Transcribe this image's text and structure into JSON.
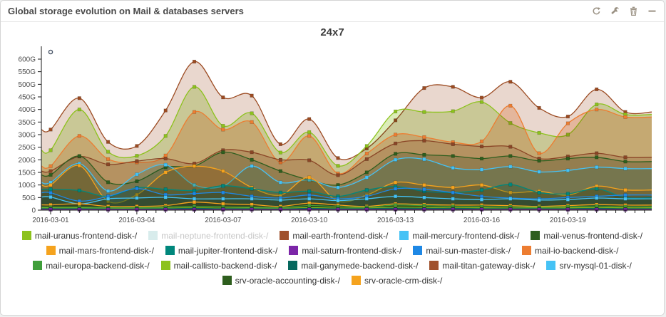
{
  "panel": {
    "title": "Global storage evolution on Mail & databases servers",
    "header_icons": [
      "refresh-icon",
      "wrench-icon",
      "trash-icon",
      "minimize-icon"
    ]
  },
  "chart_data": {
    "type": "area",
    "title": "24x7",
    "x": [
      "2016-03-01",
      "2016-03-02",
      "2016-03-03",
      "2016-03-04",
      "2016-03-05",
      "2016-03-06",
      "2016-03-07",
      "2016-03-08",
      "2016-03-09",
      "2016-03-10",
      "2016-03-11",
      "2016-03-12",
      "2016-03-13",
      "2016-03-14",
      "2016-03-15",
      "2016-03-16",
      "2016-03-17",
      "2016-03-18",
      "2016-03-19",
      "2016-03-20",
      "2016-03-21"
    ],
    "x_tick_labels": [
      "2016-03-01",
      "2016-03-04",
      "2016-03-07",
      "2016-03-10",
      "2016-03-13",
      "2016-03-16",
      "2016-03-19"
    ],
    "x_label_day_indices": [
      0,
      3,
      6,
      9,
      12,
      15,
      18
    ],
    "ylim": [
      0,
      600
    ],
    "y_ticks": [
      0,
      50,
      100,
      150,
      200,
      250,
      300,
      350,
      400,
      450,
      500,
      550,
      600
    ],
    "y_unit": "G",
    "grid": false,
    "legend_position": "bottom",
    "series": [
      {
        "name": "mail-earth-frontend-disk-/",
        "color": "#9c4b22",
        "opacity": 0.22,
        "values": [
          320,
          445,
          271,
          255,
          396,
          590,
          448,
          455,
          262,
          362,
          207,
          245,
          357,
          485,
          490,
          447,
          510,
          406,
          372,
          480,
          390
        ]
      },
      {
        "name": "mail-uranus-frontend-disk-/",
        "color": "#8cc21c",
        "opacity": 0.3,
        "values": [
          238,
          400,
          232,
          216,
          295,
          490,
          335,
          385,
          229,
          310,
          176,
          255,
          392,
          390,
          393,
          430,
          346,
          307,
          300,
          420,
          380
        ]
      },
      {
        "name": "mail-io-backend-disk-/",
        "color": "#ed7d31",
        "opacity": 0.3,
        "values": [
          175,
          295,
          203,
          190,
          217,
          390,
          320,
          350,
          190,
          295,
          146,
          225,
          300,
          290,
          270,
          273,
          415,
          226,
          345,
          400,
          370
        ]
      },
      {
        "name": "mail-titan-gateway-disk-/",
        "color": "#8a4526",
        "opacity": 0.18,
        "values": [
          155,
          213,
          182,
          195,
          205,
          185,
          238,
          230,
          200,
          198,
          139,
          203,
          265,
          276,
          262,
          253,
          252,
          205,
          213,
          226,
          210
        ]
      },
      {
        "name": "mail-venus-frontend-disk-/",
        "color": "#2e5e1e",
        "opacity": 0.22,
        "values": [
          140,
          215,
          111,
          115,
          170,
          175,
          230,
          200,
          155,
          120,
          100,
          150,
          224,
          220,
          215,
          205,
          215,
          196,
          205,
          210,
          193
        ]
      },
      {
        "name": "mail-mercury-frontend-disk-/",
        "color": "#45c2f5",
        "opacity": 0.28,
        "values": [
          110,
          185,
          76,
          142,
          180,
          100,
          95,
          175,
          110,
          120,
          90,
          130,
          200,
          202,
          168,
          161,
          173,
          152,
          158,
          171,
          165
        ]
      },
      {
        "name": "mail-mars-frontend-disk-/",
        "color": "#f5a31e",
        "opacity": 0.32,
        "values": [
          100,
          177,
          35,
          61,
          150,
          175,
          155,
          90,
          60,
          130,
          35,
          60,
          110,
          100,
          90,
          100,
          70,
          75,
          60,
          95,
          80
        ]
      },
      {
        "name": "mail-jupiter-frontend-disk-/",
        "color": "#00877c",
        "opacity": 0.22,
        "values": [
          83,
          78,
          55,
          89,
          83,
          78,
          97,
          85,
          70,
          75,
          55,
          80,
          94,
          75,
          70,
          80,
          102,
          70,
          65,
          85,
          50
        ]
      },
      {
        "name": "mail-sun-master-disk-/",
        "color": "#1e88e5",
        "opacity": 0.25,
        "values": [
          69,
          36,
          55,
          86,
          61,
          66,
          70,
          55,
          48,
          60,
          45,
          55,
          85,
          83,
          70,
          55,
          48,
          45,
          50,
          55,
          60
        ]
      },
      {
        "name": "srv-mysql-01-disk-/",
        "color": "#45c2f5",
        "opacity": 0.35,
        "values": [
          52,
          25,
          45,
          48,
          51,
          45,
          45,
          45,
          40,
          45,
          38,
          45,
          55,
          50,
          45,
          42,
          45,
          40,
          42,
          48,
          45
        ]
      },
      {
        "name": "srv-oracle-crm-disk-/",
        "color": "#f5a31e",
        "opacity": 0.35,
        "values": [
          21,
          25,
          15,
          15,
          18,
          32,
          25,
          22,
          15,
          28,
          20,
          15,
          25,
          22,
          20,
          20,
          18,
          15,
          18,
          22,
          20
        ]
      },
      {
        "name": "mail-europa-backend-disk-/",
        "color": "#3f9e3a",
        "opacity": 0.45,
        "values": [
          12,
          12,
          10,
          10,
          12,
          15,
          13,
          12,
          10,
          18,
          14,
          12,
          20,
          18,
          15,
          14,
          13,
          12,
          14,
          16,
          14
        ]
      },
      {
        "name": "mail-callisto-backend-disk-/",
        "color": "#8cc21c",
        "opacity": 0.45,
        "values": [
          8,
          8,
          7,
          7,
          8,
          9,
          8,
          8,
          7,
          10,
          8,
          8,
          12,
          11,
          9,
          9,
          8,
          8,
          9,
          10,
          9
        ]
      },
      {
        "name": "mail-ganymede-backend-disk-/",
        "color": "#06685e",
        "opacity": 0.4,
        "values": [
          6,
          6,
          5,
          5,
          6,
          7,
          6,
          6,
          5,
          7,
          6,
          6,
          8,
          7,
          7,
          6,
          6,
          6,
          6,
          7,
          6
        ]
      },
      {
        "name": "srv-oracle-accounting-disk-/",
        "color": "#2e5e1e",
        "opacity": 0.4,
        "values": [
          3,
          3,
          3,
          3,
          3,
          3,
          3,
          3,
          3,
          3,
          3,
          3,
          4,
          4,
          4,
          4,
          4,
          4,
          4,
          4,
          4
        ]
      },
      {
        "name": "mail-saturn-frontend-disk-/",
        "color": "#7c26a8",
        "opacity": 0.4,
        "values": [
          2,
          2,
          2,
          2,
          2,
          2,
          2,
          2,
          2,
          2,
          2,
          2,
          2,
          2,
          2,
          2,
          2,
          2,
          2,
          2,
          2
        ]
      }
    ]
  },
  "legend": {
    "rows": [
      [
        {
          "label": "mail-uranus-frontend-disk-/",
          "color": "#8cc21c",
          "disabled": false
        },
        {
          "label": "mail-neptune-frontend-disk-/",
          "color": "#d8ecec",
          "disabled": true
        },
        {
          "label": "mail-earth-frontend-disk-/",
          "color": "#a0512d",
          "disabled": false
        },
        {
          "label": "mail-mercury-frontend-disk-/",
          "color": "#45c2f5",
          "disabled": false
        },
        {
          "label": "mail-venus-frontend-disk-/",
          "color": "#2e5e1e",
          "disabled": false
        }
      ],
      [
        {
          "label": "mail-mars-frontend-disk-/",
          "color": "#f5a31e",
          "disabled": false
        },
        {
          "label": "mail-jupiter-frontend-disk-/",
          "color": "#00877c",
          "disabled": false
        },
        {
          "label": "mail-saturn-frontend-disk-/",
          "color": "#7c26a8",
          "disabled": false
        },
        {
          "label": "mail-sun-master-disk-/",
          "color": "#1e88e5",
          "disabled": false
        },
        {
          "label": "mail-io-backend-disk-/",
          "color": "#ed7d31",
          "disabled": false
        }
      ],
      [
        {
          "label": "mail-europa-backend-disk-/",
          "color": "#3f9e3a",
          "disabled": false
        },
        {
          "label": "mail-callisto-backend-disk-/",
          "color": "#8cc21c",
          "disabled": false
        },
        {
          "label": "mail-ganymede-backend-disk-/",
          "color": "#06685e",
          "disabled": false
        },
        {
          "label": "mail-titan-gateway-disk-/",
          "color": "#a0512d",
          "disabled": false
        },
        {
          "label": "srv-mysql-01-disk-/",
          "color": "#45c2f5",
          "disabled": false
        }
      ],
      [
        {
          "label": "srv-oracle-accounting-disk-/",
          "color": "#2e5e1e",
          "disabled": false
        },
        {
          "label": "srv-oracle-crm-disk-/",
          "color": "#f5a31e",
          "disabled": false
        }
      ]
    ]
  }
}
